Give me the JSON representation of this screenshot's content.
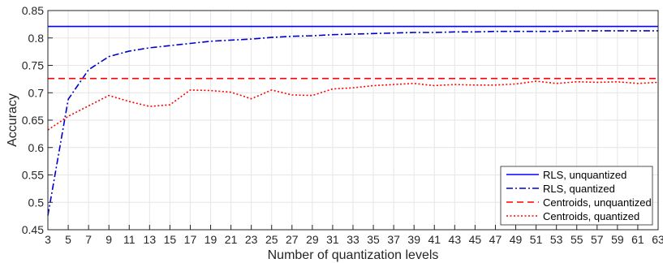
{
  "chart_data": {
    "type": "line",
    "xlabel": "Number of quantization levels",
    "ylabel": "Accuracy",
    "xlim": [
      3,
      63
    ],
    "ylim": [
      0.45,
      0.85
    ],
    "xticks": [
      3,
      5,
      7,
      9,
      11,
      13,
      15,
      17,
      19,
      21,
      23,
      25,
      27,
      29,
      31,
      33,
      35,
      37,
      39,
      41,
      43,
      45,
      47,
      49,
      51,
      53,
      55,
      57,
      59,
      61,
      63
    ],
    "yticks": [
      0.45,
      0.5,
      0.55,
      0.6,
      0.65,
      0.7,
      0.75,
      0.8,
      0.85
    ],
    "ytick_labels": [
      "0.45",
      "0.5",
      "0.55",
      "0.6",
      "0.65",
      "0.7",
      "0.75",
      "0.8",
      "0.85"
    ],
    "grid": true,
    "legend_position": "bottom-right",
    "x": [
      3,
      5,
      7,
      9,
      11,
      13,
      15,
      17,
      19,
      21,
      23,
      25,
      27,
      29,
      31,
      33,
      35,
      37,
      39,
      41,
      43,
      45,
      47,
      49,
      51,
      53,
      55,
      57,
      59,
      61,
      63
    ],
    "series": [
      {
        "name": "RLS, unquantized",
        "color": "#0000ff",
        "dash": "solid",
        "values": [
          0.821,
          0.821,
          0.821,
          0.821,
          0.821,
          0.821,
          0.821,
          0.821,
          0.821,
          0.821,
          0.821,
          0.821,
          0.821,
          0.821,
          0.821,
          0.821,
          0.821,
          0.821,
          0.821,
          0.821,
          0.821,
          0.821,
          0.821,
          0.821,
          0.821,
          0.821,
          0.821,
          0.821,
          0.821,
          0.821,
          0.821
        ]
      },
      {
        "name": "RLS, quantized",
        "color": "#0000cd",
        "dash": "dashdot",
        "values": [
          0.476,
          0.688,
          0.742,
          0.766,
          0.776,
          0.782,
          0.786,
          0.79,
          0.794,
          0.796,
          0.798,
          0.801,
          0.803,
          0.804,
          0.806,
          0.807,
          0.808,
          0.809,
          0.81,
          0.81,
          0.811,
          0.811,
          0.812,
          0.812,
          0.812,
          0.812,
          0.813,
          0.813,
          0.813,
          0.813,
          0.813
        ]
      },
      {
        "name": "Centroids, unquantized",
        "color": "#ff0000",
        "dash": "dashed",
        "values": [
          0.726,
          0.726,
          0.726,
          0.726,
          0.726,
          0.726,
          0.726,
          0.726,
          0.726,
          0.726,
          0.726,
          0.726,
          0.726,
          0.726,
          0.726,
          0.726,
          0.726,
          0.726,
          0.726,
          0.726,
          0.726,
          0.726,
          0.726,
          0.726,
          0.726,
          0.726,
          0.726,
          0.726,
          0.726,
          0.726,
          0.726
        ]
      },
      {
        "name": "Centroids, quantized",
        "color": "#ff0000",
        "dash": "dotted",
        "values": [
          0.632,
          0.657,
          0.676,
          0.695,
          0.684,
          0.675,
          0.678,
          0.705,
          0.704,
          0.701,
          0.689,
          0.705,
          0.696,
          0.695,
          0.707,
          0.709,
          0.713,
          0.715,
          0.717,
          0.713,
          0.715,
          0.714,
          0.714,
          0.716,
          0.721,
          0.717,
          0.72,
          0.719,
          0.72,
          0.717,
          0.719
        ]
      }
    ]
  }
}
